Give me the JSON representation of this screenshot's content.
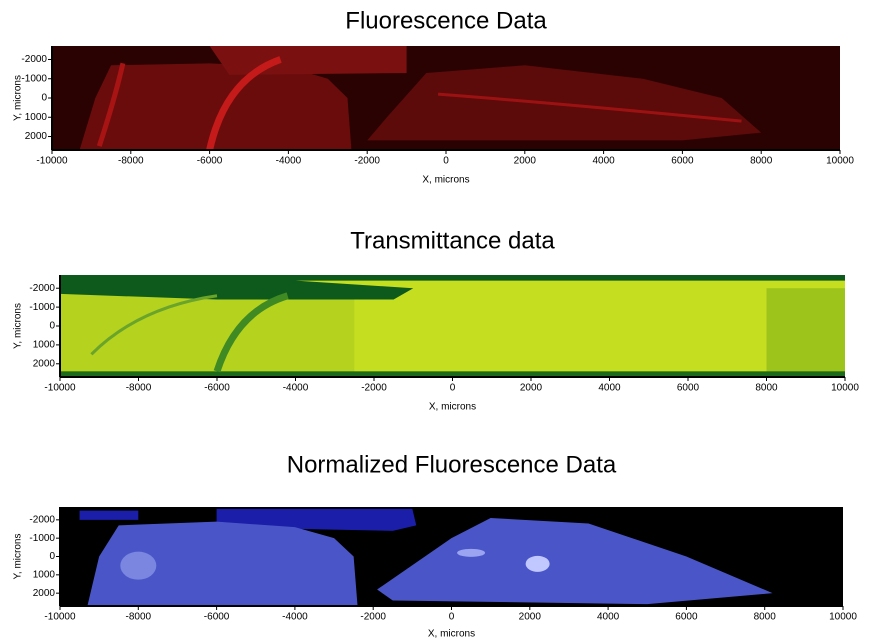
{
  "chart_data": [
    {
      "type": "heatmap",
      "title": "Fluorescence Data",
      "x_label": "X, microns",
      "y_label": "Y, microns",
      "xlim": [
        -10000,
        10000
      ],
      "xticks": [
        -10000,
        -8000,
        -6000,
        -4000,
        -2000,
        0,
        2000,
        4000,
        6000,
        8000,
        10000
      ],
      "ylim": [
        2700,
        -2700
      ],
      "yticks": [
        -2000,
        -1000,
        0,
        1000,
        2000
      ]
    },
    {
      "type": "heatmap",
      "title": "Transmittance data",
      "x_label": "X, microns",
      "y_label": "Y, microns",
      "xlim": [
        -10000,
        10000
      ],
      "xticks": [
        -10000,
        -8000,
        -6000,
        -4000,
        -2000,
        0,
        2000,
        4000,
        6000,
        8000,
        10000
      ],
      "ylim": [
        2700,
        -2700
      ],
      "yticks": [
        -2000,
        -1000,
        0,
        1000,
        2000
      ]
    },
    {
      "type": "heatmap",
      "title": "Normalized Fluorescence Data",
      "x_label": "X, microns",
      "y_label": "Y, microns",
      "xlim": [
        -10000,
        10000
      ],
      "xticks": [
        -10000,
        -8000,
        -6000,
        -4000,
        -2000,
        0,
        2000,
        4000,
        6000,
        8000,
        10000
      ],
      "ylim": [
        2700,
        -2700
      ],
      "yticks": [
        -2000,
        -1000,
        0,
        1000,
        2000
      ]
    }
  ]
}
